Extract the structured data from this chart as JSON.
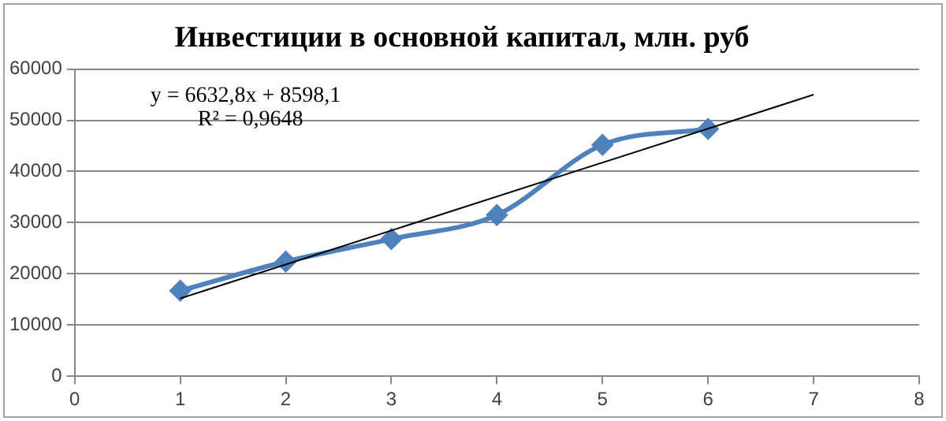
{
  "chart_data": {
    "type": "line",
    "title": "Инвестиции в основной капитал, млн. руб",
    "x": [
      1,
      2,
      3,
      4,
      5,
      6
    ],
    "series": [
      {
        "color": "#4f81bd",
        "values": [
          16700,
          22400,
          26800,
          31500,
          45200,
          48300
        ]
      },
      {
        "type": "line",
        "x": [
          1,
          7
        ],
        "color": "#000000",
        "values": [
          15200,
          55000
        ],
        "marker": "none"
      }
    ],
    "xlim": [
      0,
      8
    ],
    "xticks": [
      0,
      1,
      2,
      3,
      4,
      5,
      6,
      7,
      8
    ],
    "ylim": [
      0,
      60000
    ],
    "yticks": [
      0,
      10000,
      20000,
      30000,
      40000,
      50000,
      60000
    ],
    "grid": "y",
    "legend": false,
    "marker": "diamond",
    "annotations": [
      "y = 6632,8x + 8598,1",
      "R² = 0,9648"
    ]
  }
}
